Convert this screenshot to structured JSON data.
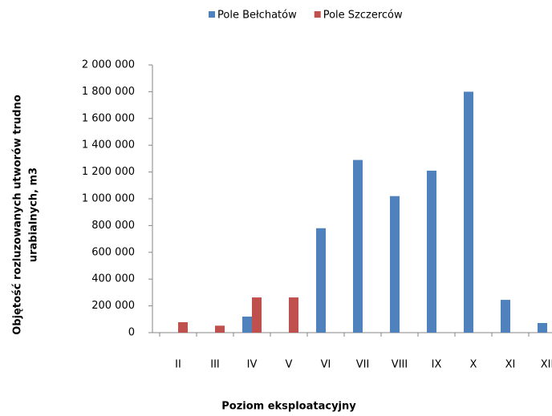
{
  "chart_data": {
    "type": "bar",
    "categories": [
      "II",
      "III",
      "IV",
      "V",
      "VI",
      "VII",
      "VIII",
      "IX",
      "X",
      "XI",
      "XII"
    ],
    "series": [
      {
        "name": "Pole Bełchatów",
        "color": "#4f81bd",
        "values": [
          0,
          0,
          120000,
          0,
          780000,
          1290000,
          1020000,
          1210000,
          1800000,
          245000,
          72000
        ]
      },
      {
        "name": "Pole Szczerców",
        "color": "#c0504d",
        "values": [
          78000,
          52000,
          263000,
          263000,
          0,
          0,
          0,
          0,
          0,
          0,
          0
        ]
      }
    ],
    "ylim": [
      0,
      2000000
    ],
    "yticks": [
      0,
      {
        "value": 200000,
        "label": "200 000"
      },
      {
        "value": 400000,
        "label": "400 000"
      },
      {
        "value": 600000,
        "label": "600 000"
      },
      {
        "value": 800000,
        "label": "800 000"
      },
      {
        "value": 1000000,
        "label": "1 000 000"
      },
      {
        "value": 1200000,
        "label": "1 200 000"
      },
      {
        "value": 1400000,
        "label": "1 400 000"
      },
      {
        "value": 1600000,
        "label": "1 600 000"
      },
      {
        "value": 1800000,
        "label": "1 800 000"
      },
      {
        "value": 2000000,
        "label": "2 000 000"
      }
    ],
    "xlabel": "Poziom eksploatacyjny",
    "ylabel": [
      "Objętość rozluzowanych utworów trudno",
      "urabialnych, m3"
    ],
    "legend": "top"
  }
}
